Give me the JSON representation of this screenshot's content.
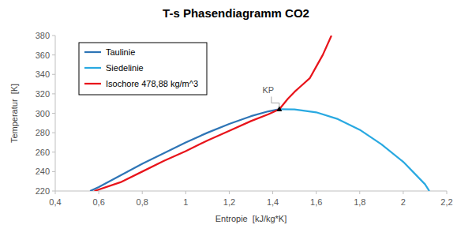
{
  "chart_data": {
    "type": "line",
    "title": "T-s Phasendiagramm CO2",
    "x_label": "Entropie  [kJ/kg*K]",
    "y_label": "Temperatur  [K]",
    "xlim": [
      0.4,
      2.2
    ],
    "ylim": [
      220,
      380
    ],
    "xticks": [
      {
        "value": 0.4,
        "label": "0,4"
      },
      {
        "value": 0.6,
        "label": "0,6"
      },
      {
        "value": 0.8,
        "label": "0,8"
      },
      1,
      {
        "value": 1.2,
        "label": "1,2"
      },
      {
        "value": 1.4,
        "label": "1,4"
      },
      {
        "value": 1.6,
        "label": "1,6"
      },
      {
        "value": 1.8,
        "label": "1,8"
      },
      2,
      {
        "value": 2.2,
        "label": "2,2"
      }
    ],
    "yticks": [
      220,
      240,
      260,
      280,
      300,
      320,
      340,
      360,
      380
    ],
    "grid": false,
    "legend": "top-left",
    "series": [
      {
        "name": "Taulinie",
        "color": "#2e75b6",
        "x": [
          0.56,
          0.6,
          0.7,
          0.8,
          0.9,
          1.0,
          1.1,
          1.2,
          1.3,
          1.38,
          1.43
        ],
        "values": [
          220,
          224,
          236,
          248,
          259,
          270,
          280,
          289,
          297,
          302,
          304.1
        ]
      },
      {
        "name": "Siedelinie",
        "color": "#29a9e1",
        "x": [
          1.43,
          1.5,
          1.6,
          1.7,
          1.8,
          1.9,
          2.0,
          2.1,
          2.12
        ],
        "values": [
          304.1,
          304,
          301,
          294,
          283,
          268,
          250,
          227,
          220
        ]
      },
      {
        "name": "Isochore 478,88 kg/m^3",
        "color": "#e8141b",
        "x": [
          0.58,
          0.7,
          0.8,
          0.9,
          1.0,
          1.1,
          1.2,
          1.3,
          1.38,
          1.43,
          1.47,
          1.5,
          1.53,
          1.57,
          1.6,
          1.63,
          1.67
        ],
        "values": [
          220,
          229,
          240,
          251,
          261,
          272,
          282,
          292,
          299,
          304.1,
          315,
          322,
          328,
          336,
          348,
          360,
          380
        ]
      }
    ],
    "annotations": [
      {
        "text": "KP",
        "x": 1.43,
        "y": 304.1,
        "marker": "triangle"
      }
    ]
  }
}
